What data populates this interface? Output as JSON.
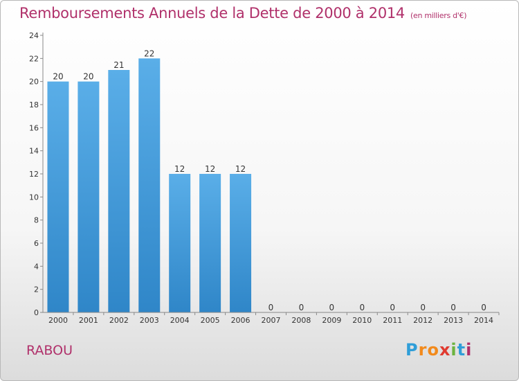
{
  "chart_data": {
    "type": "bar",
    "title": "Remboursements Annuels de la Dette de 2000 à 2014",
    "subtitle": "(en milliers d'€)",
    "categories": [
      "2000",
      "2001",
      "2002",
      "2003",
      "2004",
      "2005",
      "2006",
      "2007",
      "2008",
      "2009",
      "2010",
      "2011",
      "2012",
      "2013",
      "2014"
    ],
    "values": [
      20,
      20,
      21,
      22,
      12,
      12,
      12,
      0,
      0,
      0,
      0,
      0,
      0,
      0,
      0
    ],
    "ylim": [
      0,
      24
    ],
    "yticks": [
      0,
      2,
      4,
      6,
      8,
      10,
      12,
      14,
      16,
      18,
      20,
      22,
      24
    ],
    "grid": false,
    "bar_color": "#5aaee8",
    "bar_color_dark": "#2f86c8"
  },
  "footer": {
    "city": "RABOU",
    "logo_letters": [
      "P",
      "r",
      "o",
      "x",
      "i",
      "t",
      "i"
    ]
  }
}
